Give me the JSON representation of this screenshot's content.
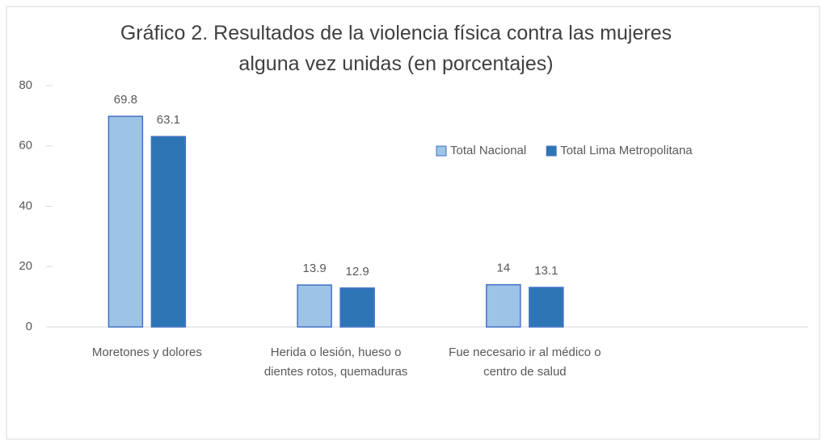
{
  "chart_data": {
    "type": "bar",
    "title": "Gráfico 2. Resultados de la violencia física contra las mujeres alguna vez unidas (en porcentajes)",
    "categories": [
      "Moretones y dolores",
      "Herida o lesión, hueso o dientes rotos, quemaduras",
      "Fue necesario ir al médico o centro de salud",
      null
    ],
    "series": [
      {
        "name": "Total Nacional",
        "color": "#9dc3e6",
        "values": [
          69.8,
          13.9,
          14,
          null
        ]
      },
      {
        "name": "Total Lima Metropolitana",
        "color": "#2e75b6",
        "values": [
          63.1,
          12.9,
          13.1,
          null
        ]
      }
    ],
    "ylim": [
      0,
      80
    ],
    "yticks": [
      0,
      20,
      40,
      60,
      80
    ],
    "legend": "upper right"
  }
}
